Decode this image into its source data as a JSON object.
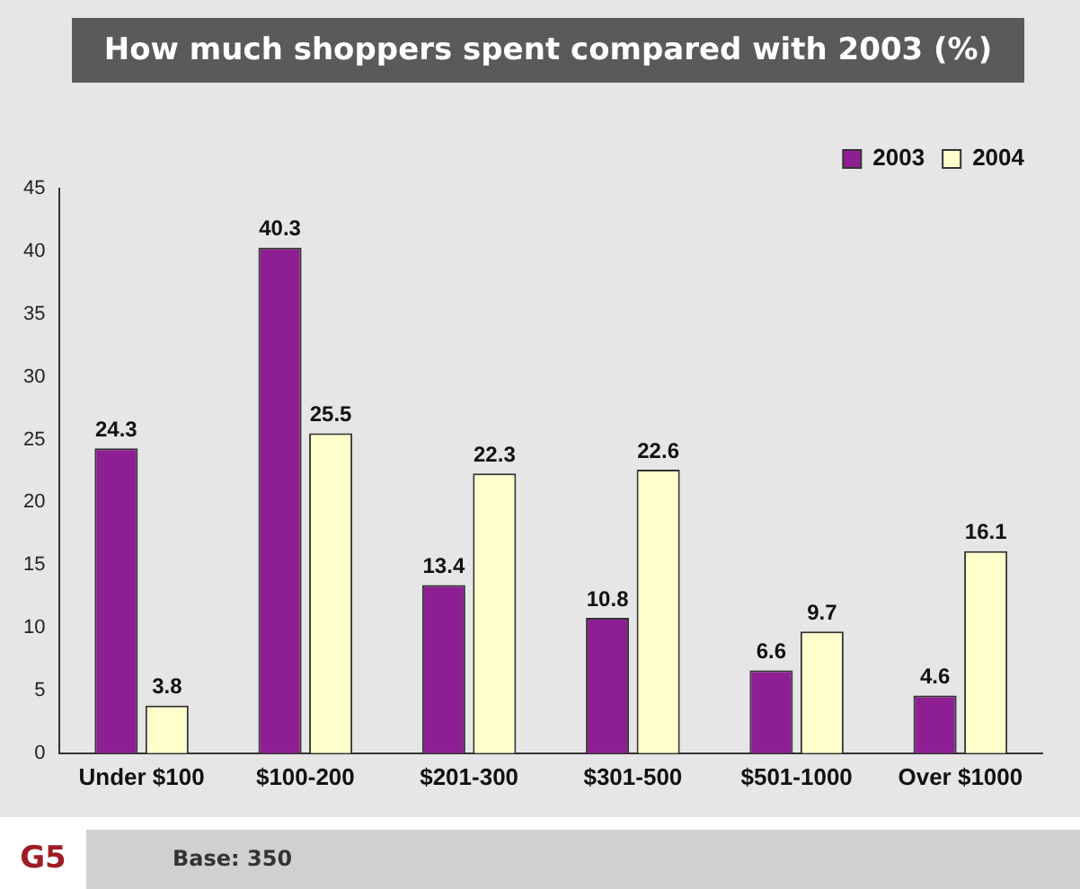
{
  "chart_data": {
    "type": "bar",
    "title": "How much shoppers spent compared with 2003 (%)",
    "categories": [
      "Under $100",
      "$100-200",
      "$201-300",
      "$301-500",
      "$501-1000",
      "Over $1000"
    ],
    "series": [
      {
        "name": "2003",
        "color": "#8e1f92",
        "values": [
          24.3,
          40.3,
          13.4,
          10.8,
          6.6,
          4.6
        ]
      },
      {
        "name": "2004",
        "color": "#ffffcc",
        "values": [
          3.8,
          25.5,
          22.3,
          22.6,
          9.7,
          16.1
        ]
      }
    ],
    "ylim": [
      0,
      45
    ],
    "yticks": [
      0,
      5,
      10,
      15,
      20,
      25,
      30,
      35,
      40,
      45
    ],
    "grid": false,
    "legend": "top right",
    "data_labels": true,
    "annotations": [
      "G5",
      "Base: 350"
    ]
  }
}
